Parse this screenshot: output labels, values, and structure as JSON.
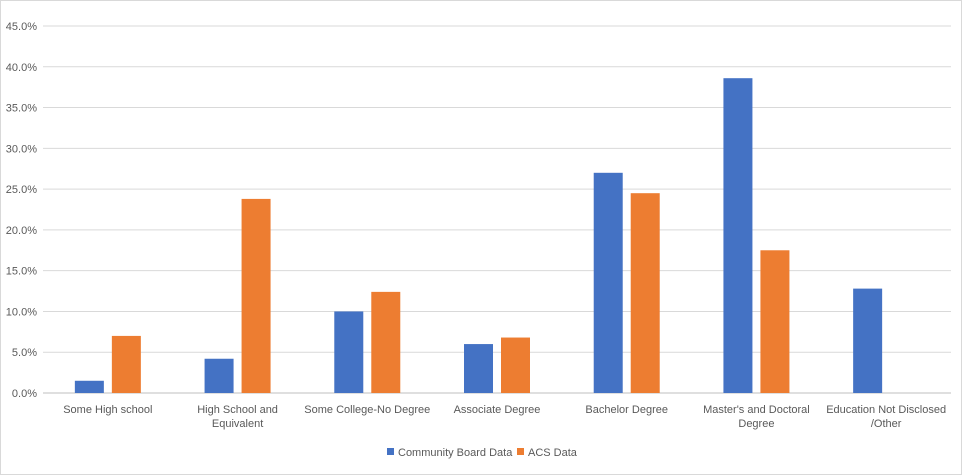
{
  "chart_data": {
    "type": "bar",
    "title": "",
    "xlabel": "",
    "ylabel": "",
    "ylim": [
      0,
      45
    ],
    "y_tick_step": 5,
    "y_tick_format": "percent_1dp",
    "grid": true,
    "legend_position": "bottom",
    "categories": [
      [
        "Some High school"
      ],
      [
        "High School and",
        "Equivalent"
      ],
      [
        "Some College-No Degree"
      ],
      [
        "Associate Degree"
      ],
      [
        "Bachelor Degree"
      ],
      [
        "Master's and Doctoral",
        "Degree"
      ],
      [
        "Education Not Disclosed",
        "/Other"
      ]
    ],
    "series": [
      {
        "name": "Community Board Data",
        "color": "#4472C4",
        "values": [
          1.5,
          4.2,
          10.0,
          6.0,
          27.0,
          38.6,
          12.8
        ]
      },
      {
        "name": "ACS Data",
        "color": "#ED7D31",
        "values": [
          7.0,
          23.8,
          12.4,
          6.8,
          24.5,
          17.5,
          null
        ]
      }
    ]
  }
}
